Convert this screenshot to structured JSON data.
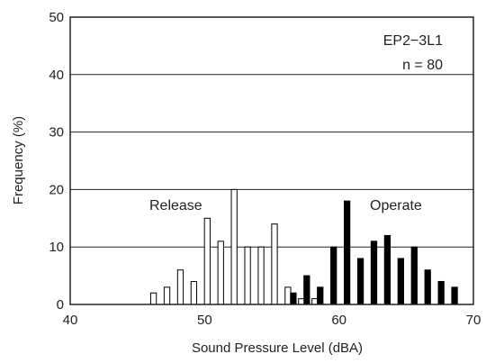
{
  "chart_data": {
    "type": "bar",
    "xlabel": "Sound Pressure Level (dBA)",
    "ylabel": "Frequency (%)",
    "xlim": [
      40,
      70
    ],
    "ylim": [
      0,
      50
    ],
    "xticks": [
      "40",
      "50",
      "60",
      "70"
    ],
    "yticks": [
      "0",
      "10",
      "20",
      "30",
      "40",
      "50"
    ],
    "grid": "horizontal",
    "annotations": {
      "model": "EP2−3L1",
      "n": "n = 80",
      "release_label": "Release",
      "operate_label": "Operate"
    },
    "series": [
      {
        "name": "Release",
        "style": "open",
        "x": [
          46.2,
          47.2,
          48.2,
          49.2,
          50.2,
          51.2,
          52.2,
          53.2,
          54.2,
          55.2,
          56.2,
          57.2,
          58.2
        ],
        "values": [
          2,
          3,
          6,
          4,
          15,
          11,
          20,
          10,
          10,
          14,
          3,
          1,
          1
        ]
      },
      {
        "name": "Operate",
        "style": "filled",
        "x": [
          56.6,
          57.6,
          58.6,
          59.6,
          60.6,
          61.6,
          62.6,
          63.6,
          64.6,
          65.6,
          66.6,
          67.6,
          68.6
        ],
        "values": [
          2,
          5,
          3,
          10,
          18,
          8,
          11,
          12,
          8,
          10,
          6,
          4,
          3
        ]
      }
    ]
  }
}
